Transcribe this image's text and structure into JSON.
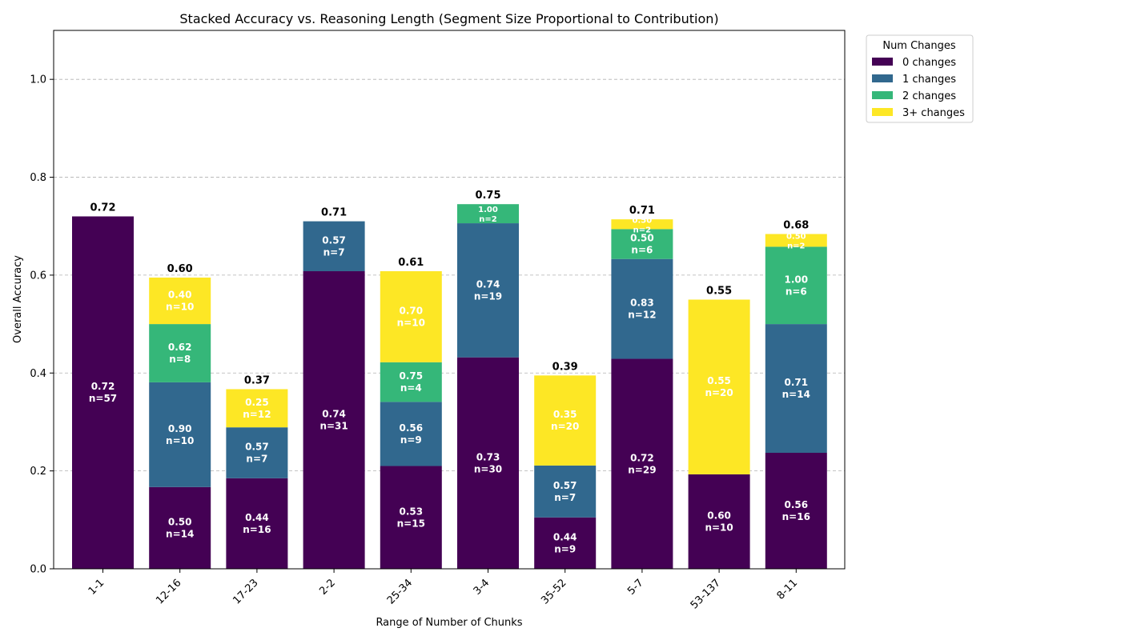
{
  "chart_data": {
    "type": "bar",
    "stacked": true,
    "title": "Stacked Accuracy vs. Reasoning Length (Segment Size Proportional to Contribution)",
    "xlabel": "Range of Number of Chunks",
    "ylabel": "Overall Accuracy",
    "ylim": [
      0,
      1.1
    ],
    "yticks": [
      "0.0",
      "0.2",
      "0.4",
      "0.6",
      "0.8",
      "1.0"
    ],
    "grid": "horizontal dashed",
    "legend": {
      "title": "Num Changes",
      "placement": "outside-top-right",
      "entries": [
        "0 changes",
        "1 changes",
        "2 changes",
        "3+ changes"
      ]
    },
    "colors": [
      "#440154",
      "#31688e",
      "#35b779",
      "#fde725"
    ],
    "categories": [
      "1-1",
      "12-16",
      "17-23",
      "2-2",
      "25-34",
      "3-4",
      "35-52",
      "5-7",
      "53-137",
      "8-11"
    ],
    "totals": [
      "0.72",
      "0.60",
      "0.37",
      "0.71",
      "0.61",
      "0.75",
      "0.39",
      "0.71",
      "0.55",
      "0.68"
    ],
    "series": [
      {
        "name": "0 changes",
        "values": [
          0.72,
          0.167,
          0.185,
          0.608,
          0.21,
          0.432,
          0.105,
          0.429,
          0.193,
          0.237
        ],
        "labels": [
          [
            "0.72",
            "n=57"
          ],
          [
            "0.50",
            "n=14"
          ],
          [
            "0.44",
            "n=16"
          ],
          [
            "0.74",
            "n=31"
          ],
          [
            "0.53",
            "n=15"
          ],
          [
            "0.73",
            "n=30"
          ],
          [
            "0.44",
            "n=9"
          ],
          [
            "0.72",
            "n=29"
          ],
          [
            "0.60",
            "n=10"
          ],
          [
            "0.56",
            "n=16"
          ]
        ]
      },
      {
        "name": "1 changes",
        "values": [
          0,
          0.214,
          0.104,
          0.102,
          0.131,
          0.274,
          0.106,
          0.204,
          0,
          0.263
        ],
        "labels": [
          null,
          [
            "0.90",
            "n=10"
          ],
          [
            "0.57",
            "n=7"
          ],
          [
            "0.57",
            "n=7"
          ],
          [
            "0.56",
            "n=9"
          ],
          [
            "0.74",
            "n=19"
          ],
          [
            "0.57",
            "n=7"
          ],
          [
            "0.83",
            "n=12"
          ],
          null,
          [
            "0.71",
            "n=14"
          ]
        ]
      },
      {
        "name": "2 changes",
        "values": [
          0,
          0.119,
          0,
          0,
          0.081,
          0.039,
          0,
          0.061,
          0,
          0.158
        ],
        "labels": [
          null,
          [
            "0.62",
            "n=8"
          ],
          null,
          null,
          [
            "0.75",
            "n=4"
          ],
          [
            "1.00",
            "n=2"
          ],
          null,
          [
            "0.50",
            "n=6"
          ],
          null,
          [
            "1.00",
            "n=6"
          ]
        ]
      },
      {
        "name": "3+ changes",
        "values": [
          0,
          0.095,
          0.078,
          0,
          0.186,
          0,
          0.184,
          0.02,
          0.357,
          0.026
        ],
        "labels": [
          null,
          [
            "0.40",
            "n=10"
          ],
          [
            "0.25",
            "n=12"
          ],
          null,
          [
            "0.70",
            "n=10"
          ],
          null,
          [
            "0.35",
            "n=20"
          ],
          [
            "0.50",
            "n=2"
          ],
          [
            "0.55",
            "n=20"
          ],
          [
            "0.50",
            "n=2"
          ]
        ]
      }
    ]
  }
}
